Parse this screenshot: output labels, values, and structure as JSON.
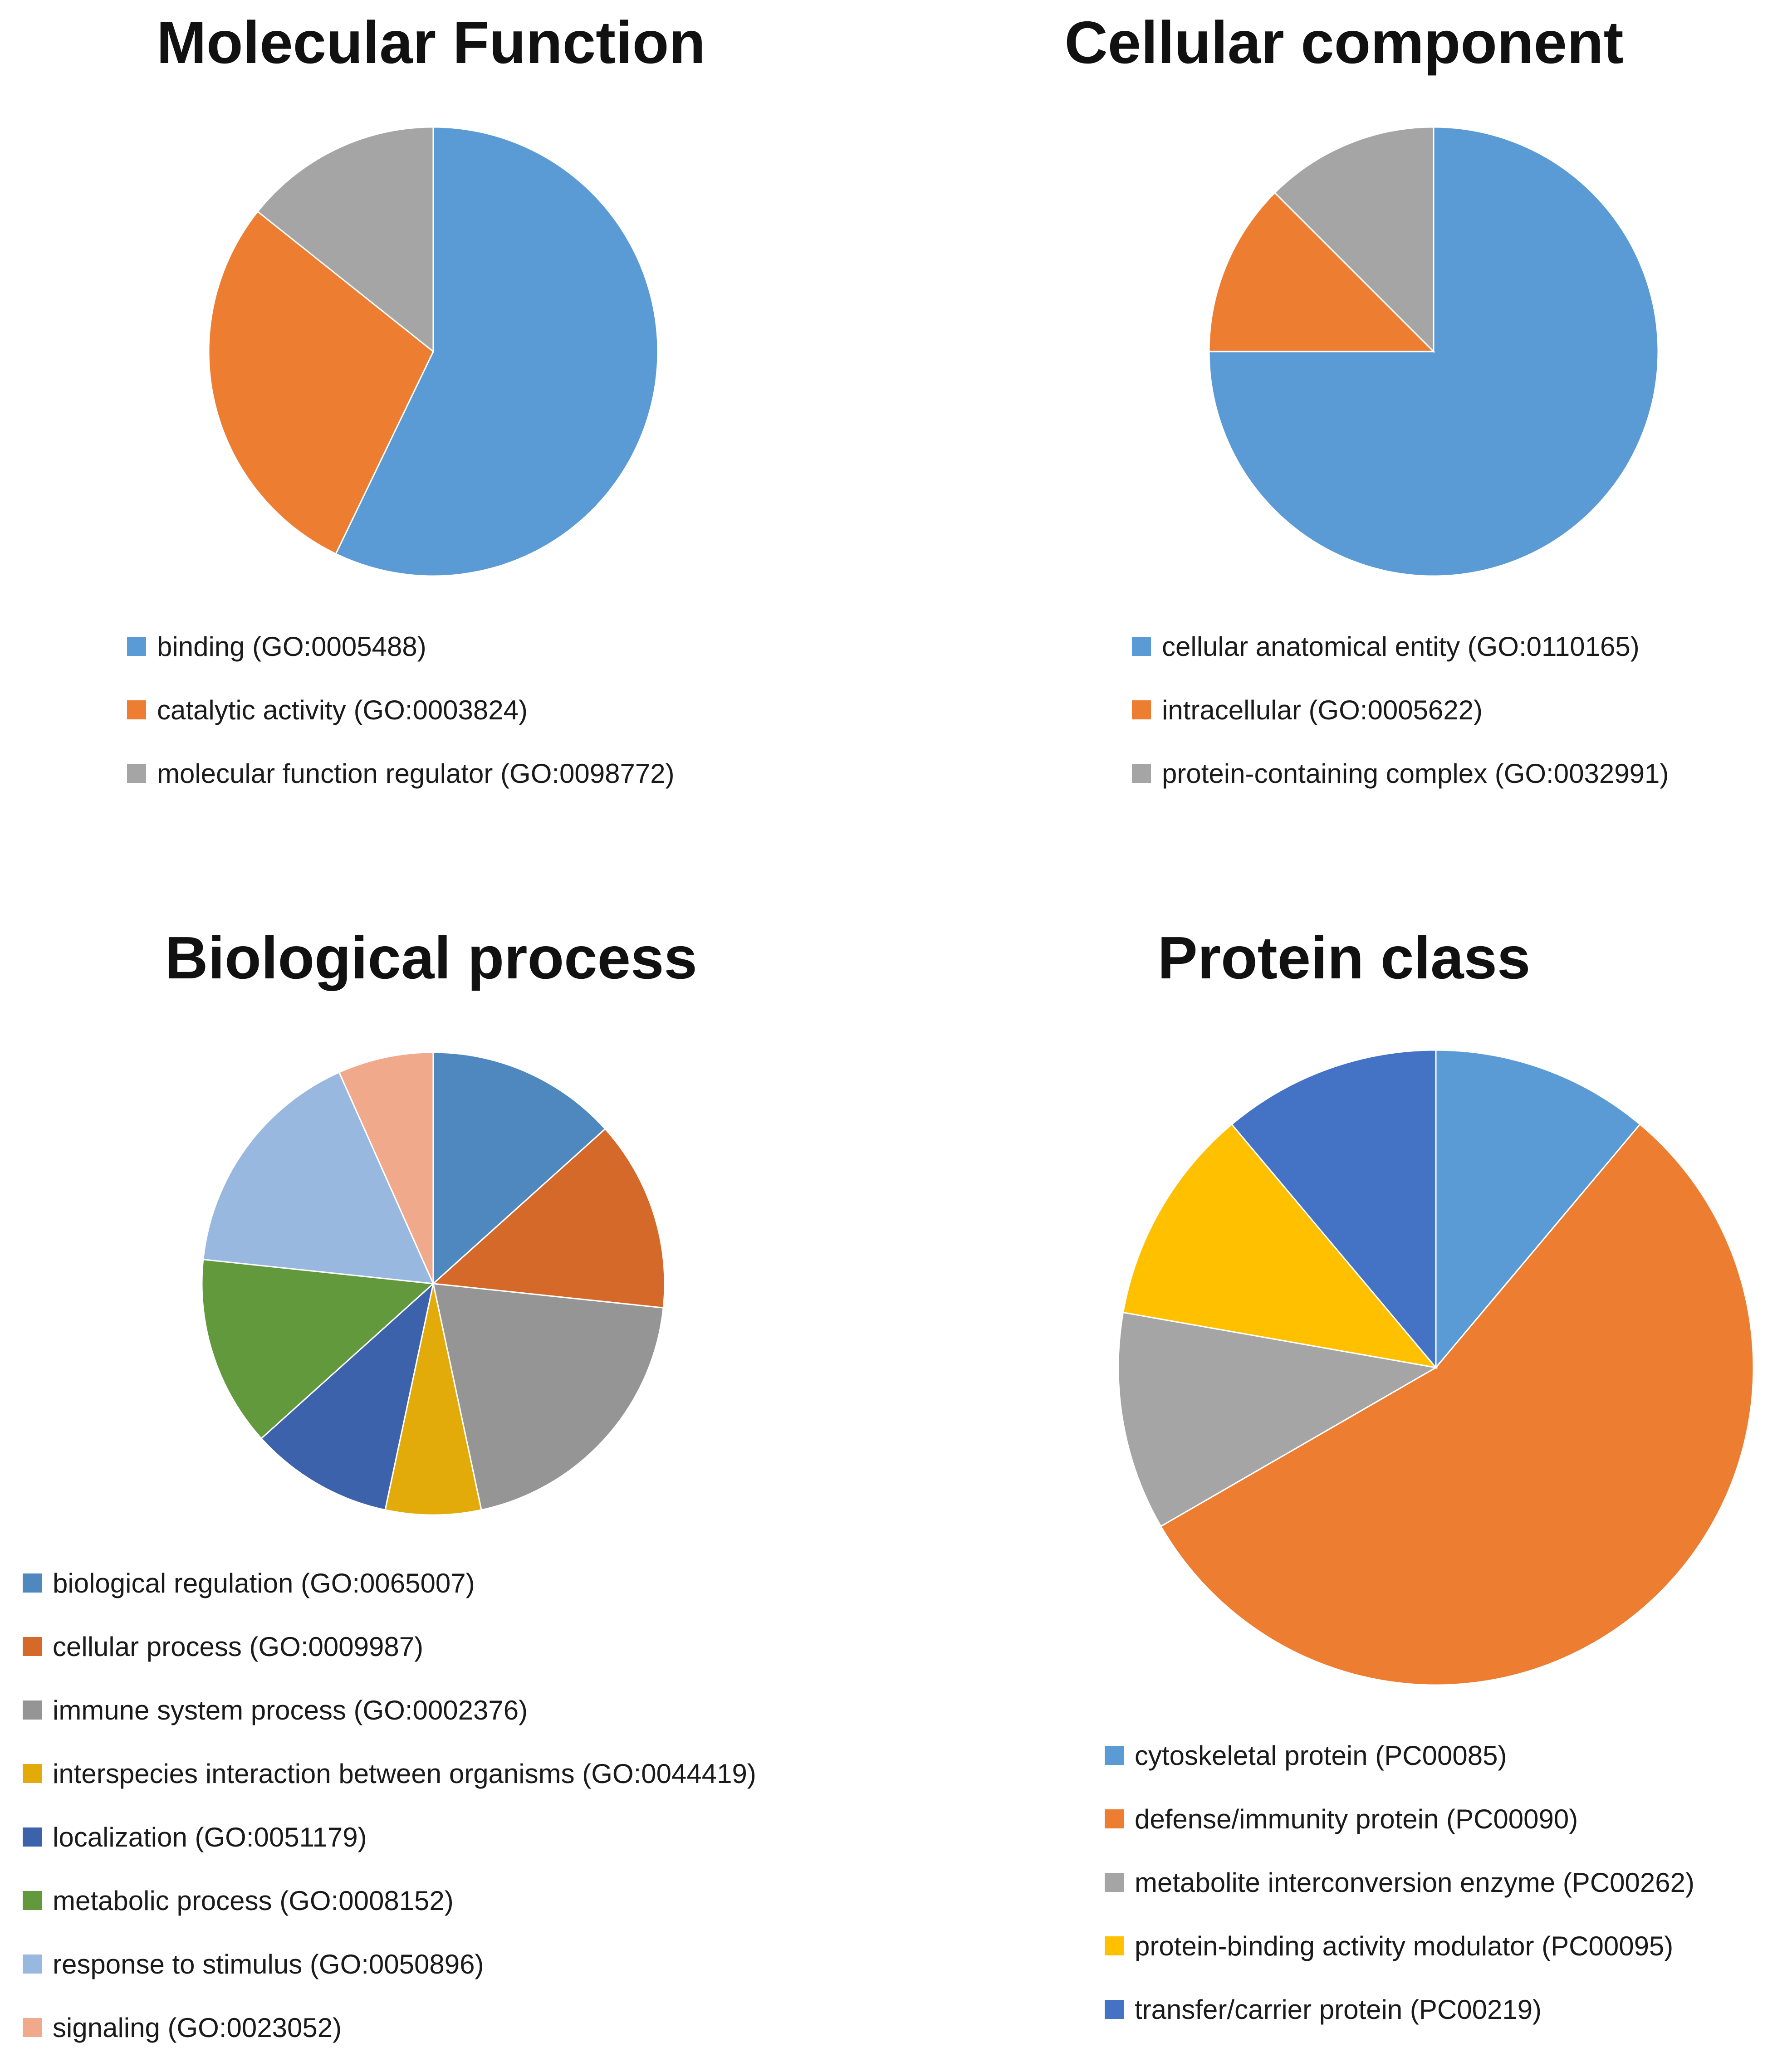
{
  "chart_data": [
    {
      "type": "pie",
      "title": "Molecular Function",
      "categories": [
        "binding (GO:0005488)",
        "catalytic activity (GO:0003824)",
        "molecular function regulator (GO:0098772)"
      ],
      "values": [
        4,
        2,
        1
      ],
      "colors": [
        "#5B9BD5",
        "#ED7D31",
        "#A5A5A5"
      ],
      "legend": "bottom"
    },
    {
      "type": "pie",
      "title": "Cellular component",
      "categories": [
        "cellular anatomical entity (GO:0110165)",
        "intracellular (GO:0005622)",
        "protein-containing complex (GO:0032991)"
      ],
      "values": [
        6,
        1,
        1
      ],
      "colors": [
        "#5B9BD5",
        "#ED7D31",
        "#A5A5A5"
      ],
      "legend": "bottom"
    },
    {
      "type": "pie",
      "title": "Biological process",
      "categories": [
        "biological regulation (GO:0065007)",
        "cellular process (GO:0009987)",
        "immune system process (GO:0002376)",
        "interspecies interaction between organisms (GO:0044419)",
        "localization (GO:0051179)",
        "metabolic process (GO:0008152)",
        "response to stimulus (GO:0050896)",
        "signaling (GO:0023052)"
      ],
      "values": [
        2,
        2,
        3,
        1,
        1.5,
        2,
        2.5,
        1
      ],
      "colors": [
        "#4E88BE",
        "#D4692A",
        "#959595",
        "#E2AB09",
        "#3C62AC",
        "#62993C",
        "#98B8DF",
        "#F1A98C"
      ],
      "legend": "bottom"
    },
    {
      "type": "pie",
      "title": "Protein class",
      "categories": [
        "cytoskeletal protein (PC00085)",
        "defense/immunity protein (PC00090)",
        "metabolite interconversion enzyme (PC00262)",
        "protein-binding activity modulator (PC00095)",
        "transfer/carrier protein (PC00219)"
      ],
      "values": [
        1,
        5,
        1,
        1,
        1
      ],
      "colors": [
        "#5B9BD5",
        "#ED7D31",
        "#A5A5A5",
        "#FFC000",
        "#4472C4"
      ],
      "legend": "bottom"
    }
  ]
}
